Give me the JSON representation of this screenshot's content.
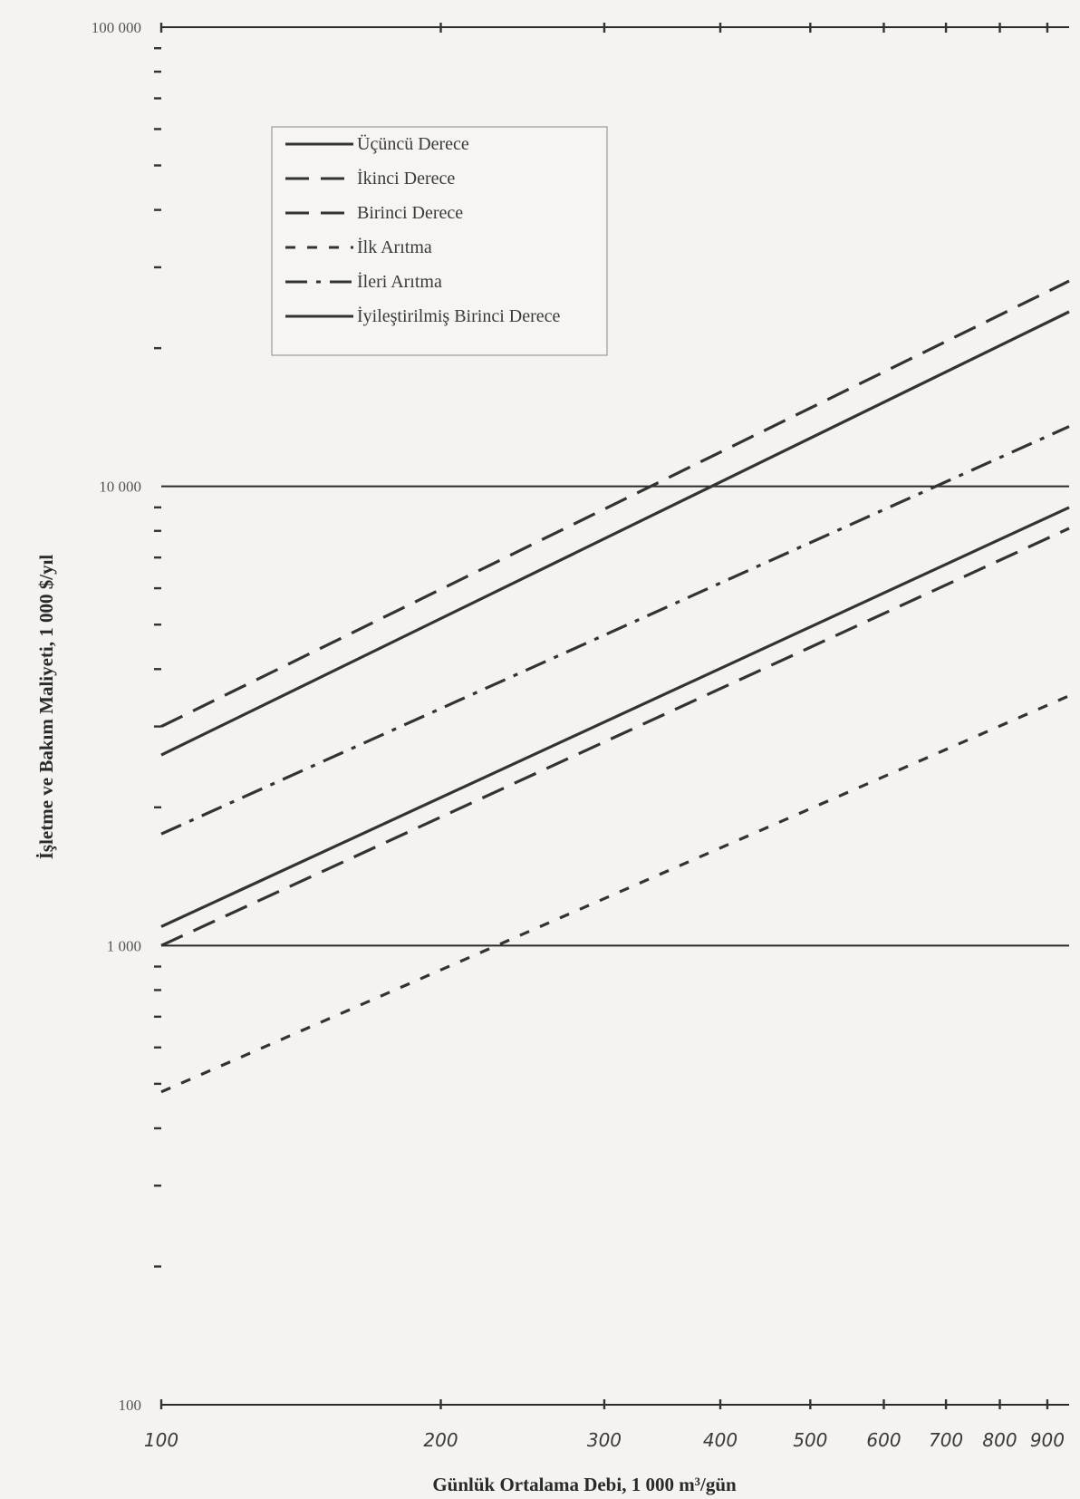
{
  "chart_data": {
    "type": "line",
    "title": "",
    "xlabel": "Günlük Ortalama Debi, 1 000 m³/gün",
    "ylabel": "İşletme ve Bakım Maliyeti, 1 000 $/yıl",
    "x_scale": "log",
    "y_scale": "log",
    "xlim": [
      100,
      950
    ],
    "ylim": [
      100,
      100000
    ],
    "x_ticks": [
      100,
      200,
      300,
      400,
      500,
      600,
      700,
      800,
      900
    ],
    "x_tick_labels": [
      "100",
      "200",
      "300",
      "400",
      "500",
      "600",
      "700",
      "800",
      "900"
    ],
    "y_ticks": [
      100,
      1000,
      10000,
      100000
    ],
    "y_tick_labels": [
      "100",
      "1 000",
      "10 000",
      "100 000"
    ],
    "grid": "horizontal lines at decades",
    "legend_position": "top-left",
    "series": [
      {
        "name": "Üçüncü Derece",
        "style": "solid",
        "color": "#333333",
        "x": [
          100,
          950
        ],
        "y": [
          2600,
          24000
        ]
      },
      {
        "name": "İkinci Derece",
        "style": "long-dash",
        "color": "#333333",
        "x": [
          100,
          950
        ],
        "y": [
          3000,
          28000
        ]
      },
      {
        "name": "Birinci Derece",
        "style": "long-dash",
        "color": "#333333",
        "x": [
          100,
          950
        ],
        "y": [
          1000,
          8100
        ]
      },
      {
        "name": "İlk Arıtma",
        "style": "short-dash",
        "color": "#333333",
        "x": [
          100,
          950
        ],
        "y": [
          480,
          3500
        ]
      },
      {
        "name": "İleri Arıtma",
        "style": "dash-dot",
        "color": "#333333",
        "x": [
          100,
          950
        ],
        "y": [
          1750,
          13500
        ]
      },
      {
        "name": "İyileştirilmiş Birinci Derece",
        "style": "solid",
        "color": "#333333",
        "x": [
          100,
          950
        ],
        "y": [
          1100,
          9000
        ]
      }
    ]
  }
}
